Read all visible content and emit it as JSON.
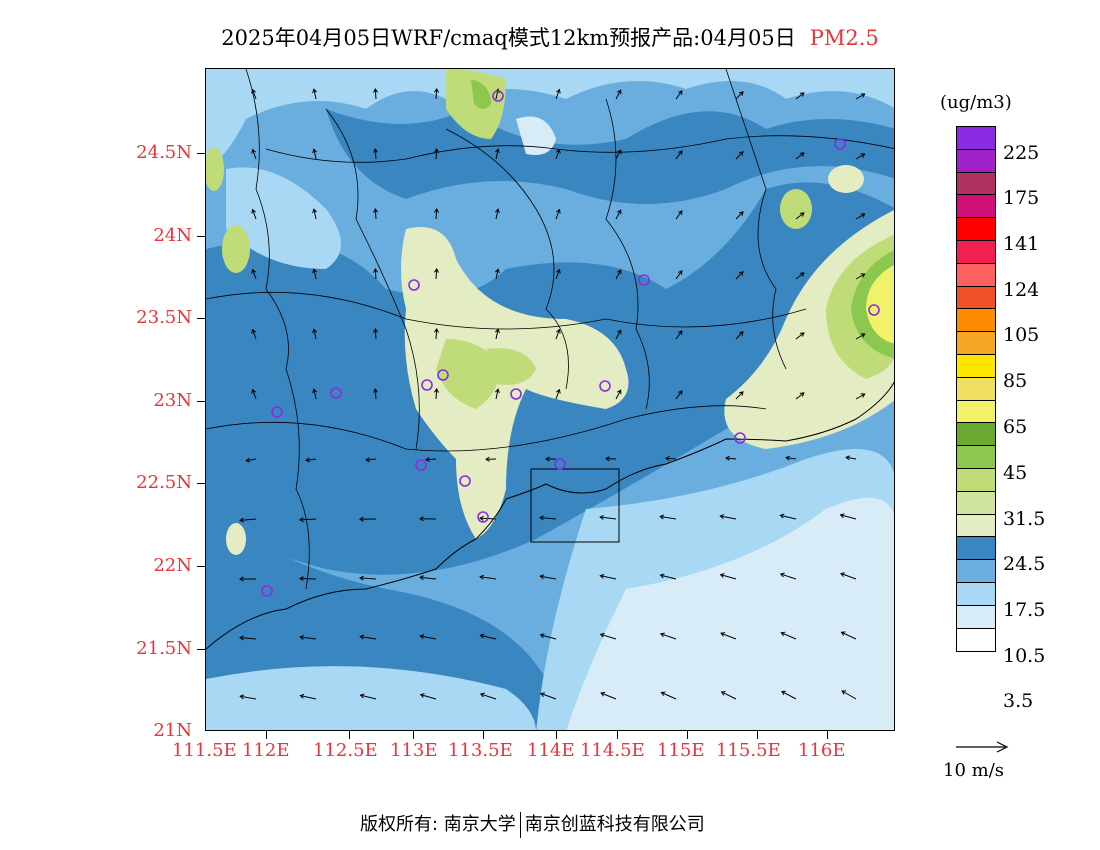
{
  "header": {
    "title": "2025年04月05日WRF/cmaq模式12km预报产品:04月05日",
    "pollutant": "PM2.5"
  },
  "axes": {
    "lat_labels": [
      "24.5N",
      "24N",
      "23.5N",
      "23N",
      "22.5N",
      "22N",
      "21.5N",
      "21N"
    ],
    "lon_labels": [
      "111.5E",
      "112E",
      "112.5E",
      "113E",
      "113.5E",
      "114E",
      "114.5E",
      "115E",
      "115.5E",
      "116E"
    ]
  },
  "legend": {
    "unit": "(ug/m3)",
    "labels": [
      "225",
      "175",
      "141",
      "124",
      "105",
      "85",
      "65",
      "45",
      "31.5",
      "24.5",
      "17.5",
      "10.5",
      "3.5"
    ],
    "colors": [
      "#8a2be2",
      "#a020c8",
      "#b03060",
      "#d01078",
      "#ff0000",
      "#f02050",
      "#ff6060",
      "#f05028",
      "#ff8c00",
      "#f5a623",
      "#ffe400",
      "#f0e060",
      "#f2f26a",
      "#6aa832",
      "#8cc850",
      "#c0dc78",
      "#d0e4a0",
      "#e4ecc4",
      "#3a86c0",
      "#6aaee0",
      "#a8d8f4",
      "#d8ecf8",
      "#ffffff"
    ]
  },
  "wind_vector": {
    "label": "10 m/s"
  },
  "footer": {
    "left": "版权所有: 南京大学",
    "right": "南京创蓝科技有限公司"
  }
}
